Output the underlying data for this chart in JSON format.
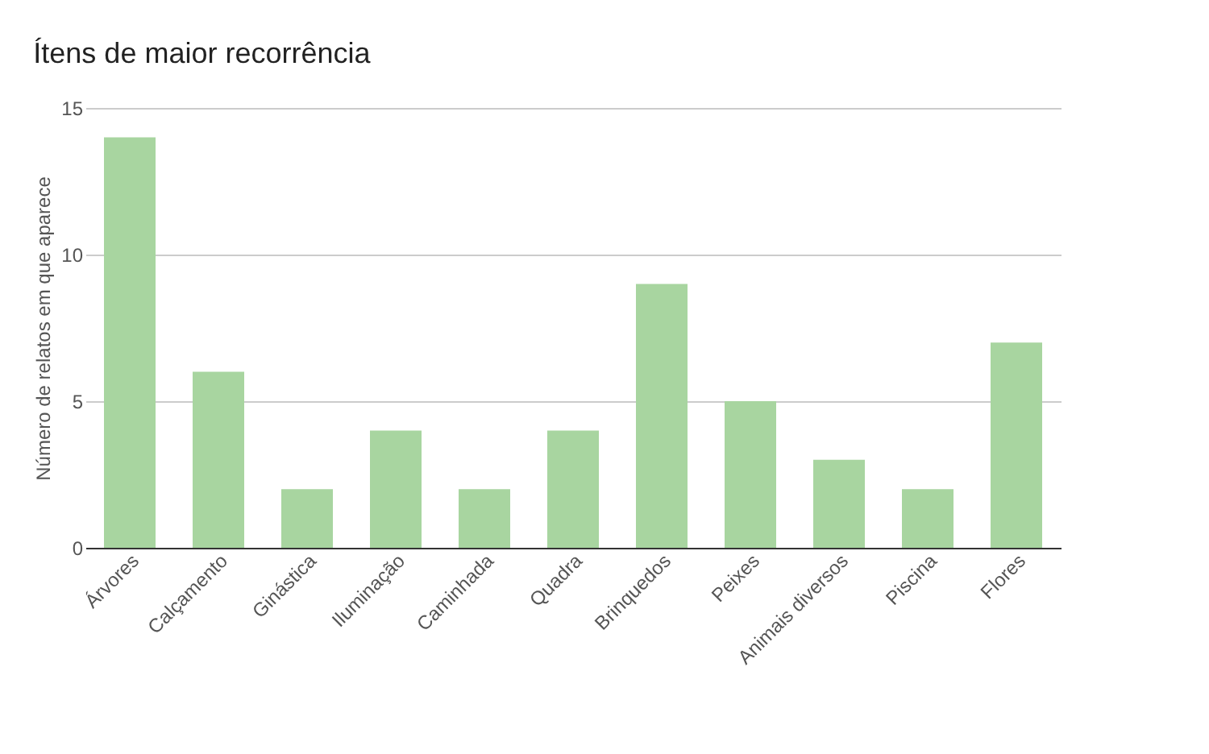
{
  "chart_data": {
    "type": "bar",
    "title": "Ítens de maior recorrência",
    "ylabel": "Número de relatos em que aparece",
    "categories": [
      "Árvores",
      "Calçamento",
      "Ginástica",
      "Iluminação",
      "Caminhada",
      "Quadra",
      "Brinquedos",
      "Peixes",
      "Animais diversos",
      "Piscina",
      "Flores"
    ],
    "values": [
      14,
      6,
      2,
      4,
      2,
      4,
      9,
      5,
      3,
      2,
      7
    ],
    "color": "#a8d5a0",
    "ylim": [
      0,
      15
    ],
    "yticks": [
      0,
      5,
      10,
      15
    ],
    "grid": "y"
  }
}
